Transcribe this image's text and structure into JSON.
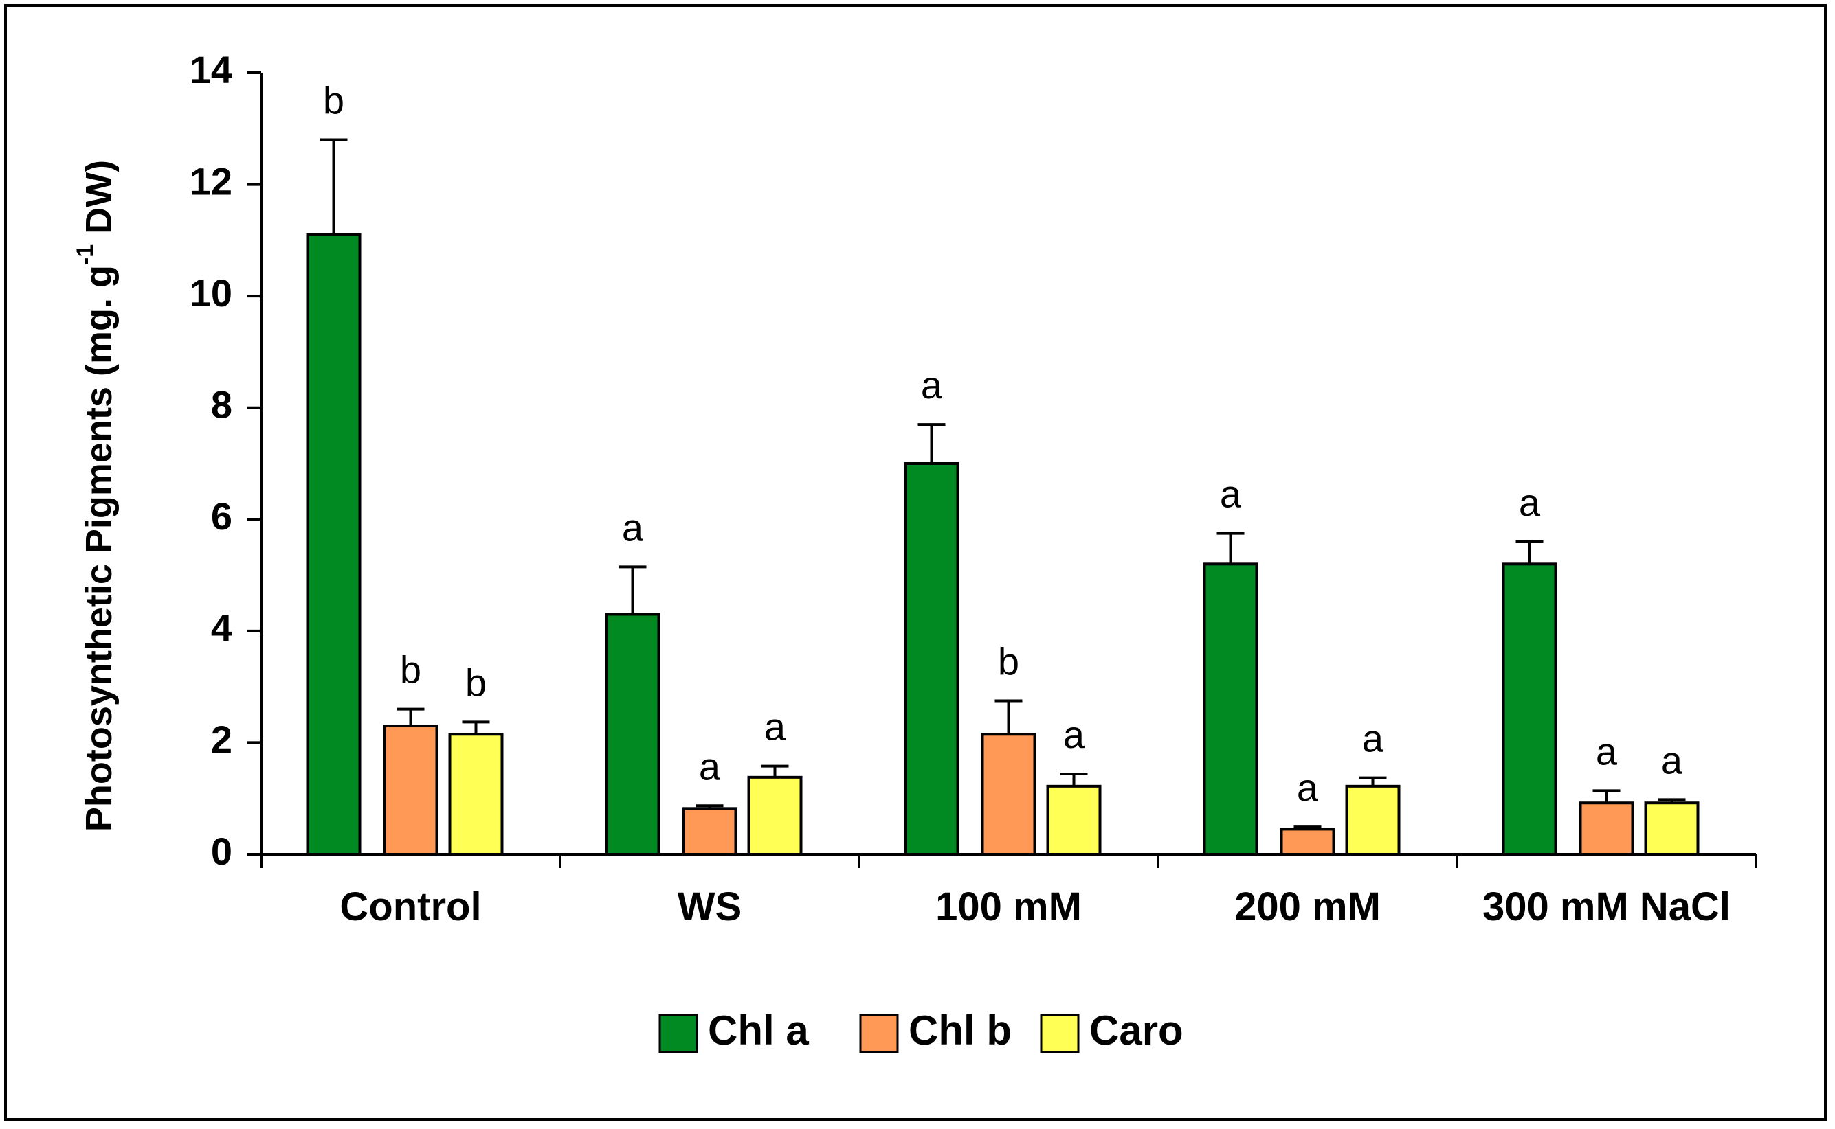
{
  "chart_data": {
    "type": "bar",
    "title": "",
    "xlabel": "",
    "ylabel": {
      "main": "Photosynthetic Pigments  (mg. g",
      "superscript": "-1",
      "suffix": " DW)"
    },
    "ylim": [
      0,
      14
    ],
    "yticks": [
      0,
      2,
      4,
      6,
      8,
      10,
      12,
      14
    ],
    "categories": [
      "Control",
      "WS",
      "100 mM",
      "200 mM",
      "300 mM NaCl"
    ],
    "series": [
      {
        "name": "Chl a",
        "color": "#008a21",
        "values": [
          11.1,
          4.3,
          7.0,
          5.2,
          5.2
        ],
        "errors": [
          1.7,
          0.85,
          0.7,
          0.55,
          0.4
        ],
        "labels": [
          "b",
          "a",
          "a",
          "a",
          "a"
        ]
      },
      {
        "name": "Chl b",
        "color": "#ff9955",
        "values": [
          2.3,
          0.82,
          2.15,
          0.45,
          0.92
        ],
        "errors": [
          0.3,
          0.05,
          0.6,
          0.04,
          0.22
        ],
        "labels": [
          "b",
          "a",
          "b",
          "a",
          "a"
        ]
      },
      {
        "name": "Caro",
        "color": "#ffff55",
        "values": [
          2.15,
          1.38,
          1.22,
          1.22,
          0.92
        ],
        "errors": [
          0.22,
          0.2,
          0.22,
          0.15,
          0.06
        ],
        "labels": [
          "b",
          "a",
          "a",
          "a",
          "a"
        ]
      }
    ],
    "legend_position": "bottom-center",
    "grid": false
  }
}
